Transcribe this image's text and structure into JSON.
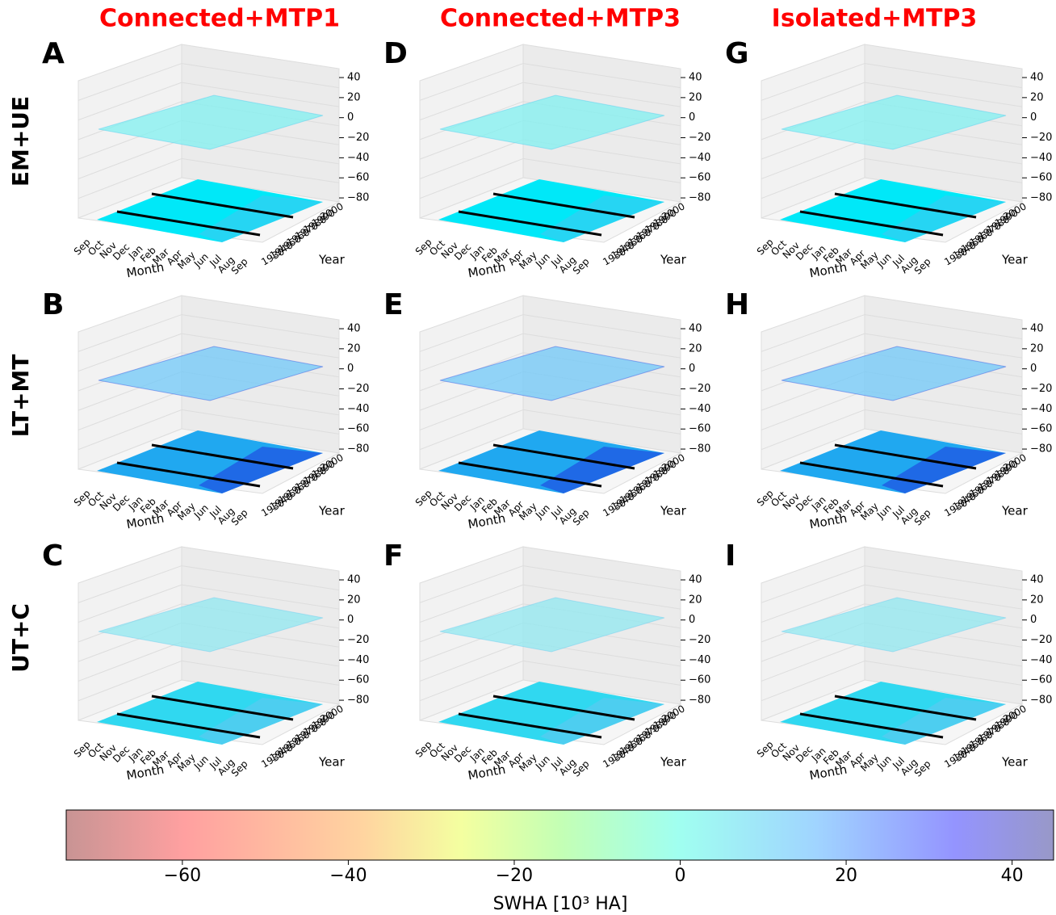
{
  "columns": [
    {
      "title": "Connected+MTP1",
      "panels": [
        "A",
        "B",
        "C"
      ]
    },
    {
      "title": "Connected+MTP3",
      "panels": [
        "D",
        "E",
        "F"
      ]
    },
    {
      "title": "Isolated+MTP3",
      "panels": [
        "G",
        "H",
        "I"
      ]
    }
  ],
  "rows": [
    "EM+UE",
    "LT+MT",
    "UT+C"
  ],
  "axes": {
    "zticks": [
      40,
      20,
      0,
      {
        "value": -20,
        "label": "−20"
      },
      {
        "value": -40,
        "label": "−40"
      },
      {
        "value": -60,
        "label": "−60"
      },
      {
        "value": -80,
        "label": "−80"
      }
    ],
    "months": [
      "Sep",
      "Oct",
      "Nov",
      "Dec",
      "Jan",
      "Feb",
      "Mar",
      "Apr",
      "May",
      "Jun",
      "Jul",
      "Aug",
      "Sep"
    ],
    "years": [
      1930,
      1940,
      1950,
      1960,
      1970,
      1980,
      1990,
      2000
    ],
    "xlabel": "Month",
    "ylabel": "Year"
  },
  "colorbar": {
    "lim": [
      -74,
      45
    ],
    "ticks": [
      {
        "value": -60,
        "label": "−60"
      },
      {
        "value": -40,
        "label": "−40"
      },
      {
        "value": -20,
        "label": "−20"
      },
      0,
      20,
      40
    ],
    "label": "SWHA [10³ HA]"
  }
}
